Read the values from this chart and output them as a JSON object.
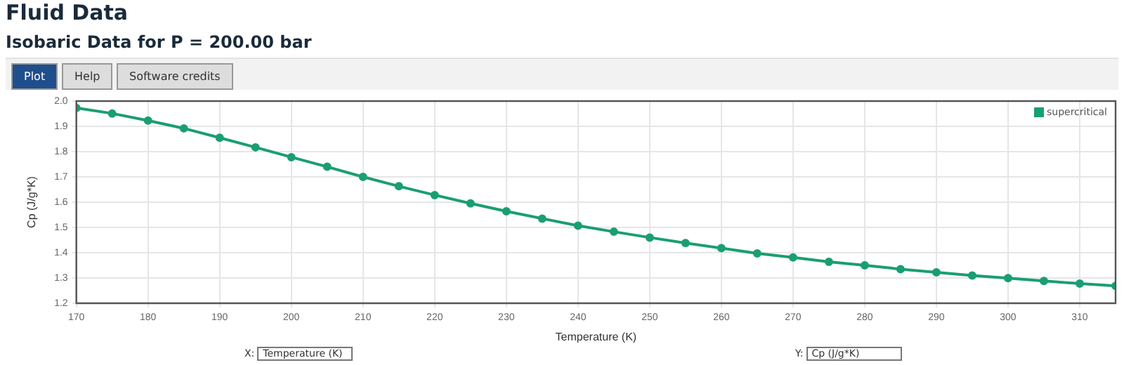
{
  "chart_data": {
    "type": "line",
    "title": "Fluid Data",
    "subtitle": "Isobaric Data for P = 200.00 bar",
    "xlabel": "Temperature (K)",
    "ylabel": "Cp (J/g*K)",
    "annotations": [
      "Plot",
      "Help",
      "Software credits",
      "X:",
      "Y:"
    ],
    "x": [
      170,
      175,
      180,
      185,
      190,
      195,
      200,
      205,
      210,
      215,
      220,
      225,
      230,
      235,
      240,
      245,
      250,
      255,
      260,
      265,
      270,
      275,
      280,
      285,
      290,
      295,
      300,
      305,
      310,
      315
    ],
    "series": [
      {
        "name": "supercritical",
        "color": "#1a9e74",
        "values": [
          1.973,
          1.951,
          1.923,
          1.892,
          1.855,
          1.817,
          1.778,
          1.74,
          1.7,
          1.663,
          1.628,
          1.595,
          1.564,
          1.535,
          1.507,
          1.483,
          1.46,
          1.438,
          1.418,
          1.397,
          1.381,
          1.364,
          1.35,
          1.335,
          1.322,
          1.31,
          1.299,
          1.288,
          1.278,
          1.269
        ]
      }
    ],
    "xlim": [
      170,
      315
    ],
    "xticks": [
      170,
      180,
      190,
      200,
      210,
      220,
      230,
      240,
      250,
      260,
      270,
      280,
      290,
      300,
      310
    ],
    "ylim": [
      1.2,
      2.0
    ],
    "yticks": [
      {
        "value": 1.2,
        "label": "1.2"
      },
      {
        "value": 1.3,
        "label": "1.3"
      },
      {
        "value": 1.4,
        "label": "1.4"
      },
      {
        "value": 1.5,
        "label": "1.5"
      },
      {
        "value": 1.6,
        "label": "1.6"
      },
      {
        "value": 1.7,
        "label": "1.7"
      },
      {
        "value": 1.8,
        "label": "1.8"
      },
      {
        "value": 1.9,
        "label": "1.9"
      },
      {
        "value": 2.0,
        "label": "2.0"
      }
    ],
    "grid": true,
    "legend": "top right",
    "marker": "circle",
    "line_style": "solid"
  }
}
